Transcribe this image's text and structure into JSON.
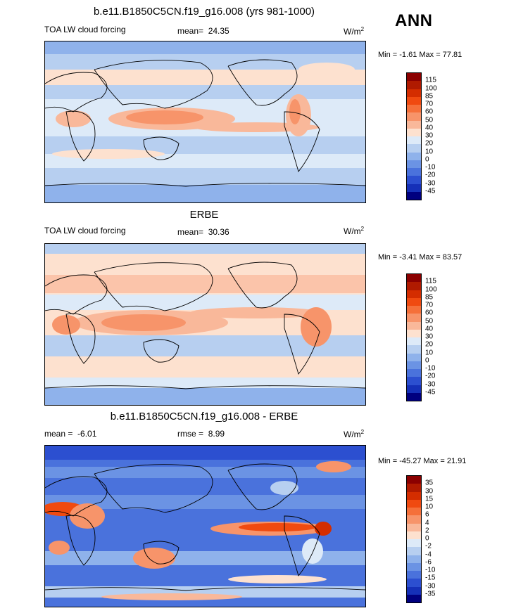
{
  "season": "ANN",
  "panels": [
    {
      "title": "b.e11.B1850C5CN.f19_g16.008 (yrs 981-1000)",
      "variable": "TOA LW cloud forcing",
      "stat_label": "mean=",
      "stat_value": "24.35",
      "units_base": "W/m",
      "units_exp": "2",
      "minmax": "Min = -1.61 Max = 77.81"
    },
    {
      "title": "ERBE",
      "variable": "TOA LW cloud forcing",
      "stat_label": "mean=",
      "stat_value": "30.36",
      "units_base": "W/m",
      "units_exp": "2",
      "minmax": "Min = -3.41 Max = 83.57"
    },
    {
      "title": "b.e11.B1850C5CN.f19_g16.008 - ERBE",
      "left_stat_label": "mean =",
      "left_stat_value": "-6.01",
      "stat_label": "rmse =",
      "stat_value": "8.99",
      "units_base": "W/m",
      "units_exp": "2",
      "minmax": "Min = -45.27 Max = 21.91"
    }
  ],
  "colorbars": {
    "field": {
      "labels": [
        "115",
        "100",
        "85",
        "70",
        "60",
        "50",
        "40",
        "30",
        "20",
        "10",
        "0",
        "-10",
        "-20",
        "-30",
        "-45"
      ],
      "colors": [
        "#8b0000",
        "#b01a00",
        "#d42d00",
        "#f04a10",
        "#f5703a",
        "#f7946a",
        "#f9b89a",
        "#fde1cf",
        "#ddeaf8",
        "#b7cff0",
        "#8fb2eb",
        "#6b93e4",
        "#4a72dc",
        "#2c4fd0",
        "#1530b8",
        "#00007f"
      ]
    },
    "diff": {
      "labels": [
        "35",
        "30",
        "15",
        "10",
        "6",
        "4",
        "2",
        "0",
        "-2",
        "-4",
        "-6",
        "-10",
        "-15",
        "-30",
        "-35"
      ],
      "colors": [
        "#8b0000",
        "#b01a00",
        "#d42d00",
        "#f04a10",
        "#f5703a",
        "#f7946a",
        "#f9b89a",
        "#fde1cf",
        "#ddeaf8",
        "#b7cff0",
        "#8fb2eb",
        "#6b93e4",
        "#4a72dc",
        "#2c4fd0",
        "#1530b8",
        "#00007f"
      ]
    }
  }
}
